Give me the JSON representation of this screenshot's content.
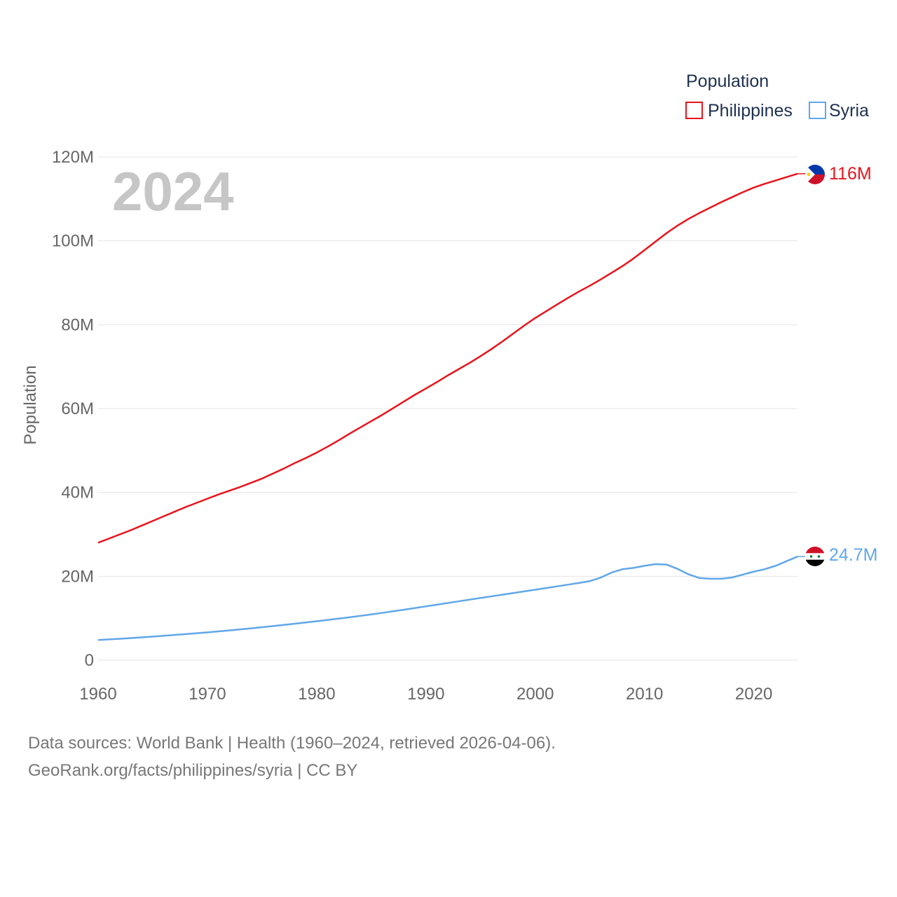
{
  "chart_data": {
    "type": "line",
    "year_label": "2024",
    "ylabel": "Population",
    "ylim": [
      0,
      120
    ],
    "xlim": [
      1960,
      2024
    ],
    "y_ticks": [
      {
        "value": 0,
        "label": "0"
      },
      {
        "value": 20,
        "label": "20M"
      },
      {
        "value": 40,
        "label": "40M"
      },
      {
        "value": 60,
        "label": "60M"
      },
      {
        "value": 80,
        "label": "80M"
      },
      {
        "value": 100,
        "label": "100M"
      },
      {
        "value": 120,
        "label": "120M"
      }
    ],
    "x_ticks": [
      "1960",
      "1970",
      "1980",
      "1990",
      "2000",
      "2010",
      "2020"
    ],
    "legend": {
      "title": "Population",
      "placement": "top-right"
    },
    "x": [
      1960,
      1961,
      1962,
      1963,
      1964,
      1965,
      1966,
      1967,
      1968,
      1969,
      1970,
      1971,
      1972,
      1973,
      1974,
      1975,
      1976,
      1977,
      1978,
      1979,
      1980,
      1981,
      1982,
      1983,
      1984,
      1985,
      1986,
      1987,
      1988,
      1989,
      1990,
      1991,
      1992,
      1993,
      1994,
      1995,
      1996,
      1997,
      1998,
      1999,
      2000,
      2001,
      2002,
      2003,
      2004,
      2005,
      2006,
      2007,
      2008,
      2009,
      2010,
      2011,
      2012,
      2013,
      2014,
      2015,
      2016,
      2017,
      2018,
      2019,
      2020,
      2021,
      2022,
      2023,
      2024
    ],
    "series": [
      {
        "name": "Philippines",
        "color": "#e8141c",
        "end_label": "116M",
        "flag": "philippines-flag-icon",
        "values": [
          28.0,
          29.0,
          30.0,
          31.0,
          32.1,
          33.2,
          34.3,
          35.4,
          36.5,
          37.5,
          38.5,
          39.5,
          40.4,
          41.3,
          42.3,
          43.3,
          44.5,
          45.7,
          47.0,
          48.2,
          49.5,
          50.9,
          52.4,
          54.0,
          55.5,
          57.0,
          58.5,
          60.1,
          61.7,
          63.3,
          64.8,
          66.3,
          67.9,
          69.4,
          70.9,
          72.5,
          74.2,
          76.0,
          77.9,
          79.8,
          81.6,
          83.2,
          84.8,
          86.4,
          87.9,
          89.3,
          90.8,
          92.4,
          94.0,
          95.8,
          97.8,
          99.8,
          101.8,
          103.6,
          105.2,
          106.6,
          107.9,
          109.2,
          110.4,
          111.6,
          112.7,
          113.6,
          114.4,
          115.2,
          116.0
        ]
      },
      {
        "name": "Syria",
        "color": "#61a7e8",
        "end_label": "24.7M",
        "flag": "syria-flag-icon",
        "values": [
          4.8,
          4.95,
          5.1,
          5.27,
          5.44,
          5.62,
          5.81,
          6.01,
          6.21,
          6.42,
          6.63,
          6.86,
          7.09,
          7.34,
          7.59,
          7.85,
          8.12,
          8.4,
          8.69,
          8.98,
          9.28,
          9.59,
          9.9,
          10.22,
          10.56,
          10.91,
          11.27,
          11.65,
          12.04,
          12.43,
          12.83,
          13.23,
          13.63,
          14.03,
          14.43,
          14.83,
          15.22,
          15.61,
          16.0,
          16.4,
          16.8,
          17.2,
          17.6,
          18.0,
          18.4,
          18.85,
          19.7,
          20.9,
          21.7,
          22.0,
          22.5,
          22.9,
          22.8,
          21.8,
          20.5,
          19.6,
          19.4,
          19.4,
          19.7,
          20.4,
          21.1,
          21.7,
          22.5,
          23.6,
          24.7
        ]
      }
    ]
  },
  "footer": {
    "line1": "Data sources: World Bank | Health (1960–2024, retrieved 2026-04-06).",
    "line2": "GeoRank.org/facts/philippines/syria | CC BY"
  }
}
